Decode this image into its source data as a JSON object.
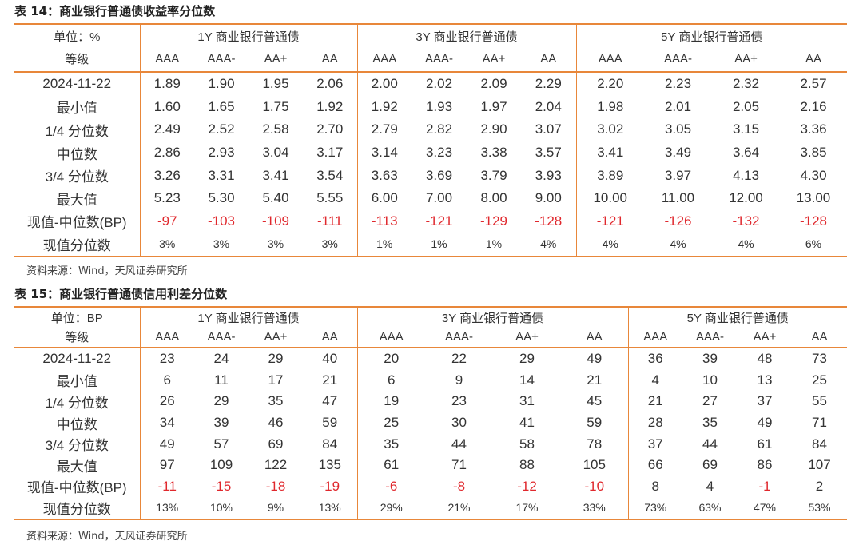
{
  "table14": {
    "title": "表 14：商业银行普通债收益率分位数",
    "unit_label": "单位：%",
    "grade_label": "等级",
    "groups": [
      "1Y 商业银行普通债",
      "3Y 商业银行普通债",
      "5Y 商业银行普通债"
    ],
    "grades": [
      "AAA",
      "AAA-",
      "AA+",
      "AA"
    ],
    "rows": [
      {
        "label": "2024-11-22",
        "values": [
          "1.89",
          "1.90",
          "1.95",
          "2.06",
          "2.00",
          "2.02",
          "2.09",
          "2.29",
          "2.20",
          "2.23",
          "2.32",
          "2.57"
        ]
      },
      {
        "label": "最小值",
        "values": [
          "1.60",
          "1.65",
          "1.75",
          "1.92",
          "1.92",
          "1.93",
          "1.97",
          "2.04",
          "1.98",
          "2.01",
          "2.05",
          "2.16"
        ]
      },
      {
        "label": "1/4 分位数",
        "values": [
          "2.49",
          "2.52",
          "2.58",
          "2.70",
          "2.79",
          "2.82",
          "2.90",
          "3.07",
          "3.02",
          "3.05",
          "3.15",
          "3.36"
        ]
      },
      {
        "label": "中位数",
        "values": [
          "2.86",
          "2.93",
          "3.04",
          "3.17",
          "3.14",
          "3.23",
          "3.38",
          "3.57",
          "3.41",
          "3.49",
          "3.64",
          "3.85"
        ]
      },
      {
        "label": "3/4 分位数",
        "values": [
          "3.26",
          "3.31",
          "3.41",
          "3.54",
          "3.63",
          "3.69",
          "3.79",
          "3.93",
          "3.89",
          "3.97",
          "4.13",
          "4.30"
        ]
      },
      {
        "label": "最大值",
        "values": [
          "5.23",
          "5.30",
          "5.40",
          "5.55",
          "6.00",
          "7.00",
          "8.00",
          "9.00",
          "10.00",
          "11.00",
          "12.00",
          "13.00"
        ]
      },
      {
        "label": "现值-中位数(BP)",
        "values": [
          "-97",
          "-103",
          "-109",
          "-111",
          "-113",
          "-121",
          "-129",
          "-128",
          "-121",
          "-126",
          "-132",
          "-128"
        ]
      },
      {
        "label": "现值分位数",
        "values": [
          "3%",
          "3%",
          "3%",
          "3%",
          "1%",
          "1%",
          "1%",
          "4%",
          "4%",
          "4%",
          "4%",
          "6%"
        ]
      }
    ],
    "source": "资料来源：Wind，天风证券研究所"
  },
  "table15": {
    "title": "表 15：商业银行普通债信用利差分位数",
    "unit_label": "单位：BP",
    "grade_label": "等级",
    "groups": [
      "1Y 商业银行普通债",
      "3Y 商业银行普通债",
      "5Y 商业银行普通债"
    ],
    "grades": [
      "AAA",
      "AAA-",
      "AA+",
      "AA"
    ],
    "rows": [
      {
        "label": "2024-11-22",
        "values": [
          "23",
          "24",
          "29",
          "40",
          "20",
          "22",
          "29",
          "49",
          "36",
          "39",
          "48",
          "73"
        ]
      },
      {
        "label": "最小值",
        "values": [
          "6",
          "11",
          "17",
          "21",
          "6",
          "9",
          "14",
          "21",
          "4",
          "10",
          "13",
          "25"
        ]
      },
      {
        "label": "1/4 分位数",
        "values": [
          "26",
          "29",
          "35",
          "47",
          "19",
          "23",
          "31",
          "45",
          "21",
          "27",
          "37",
          "55"
        ]
      },
      {
        "label": "中位数",
        "values": [
          "34",
          "39",
          "46",
          "59",
          "25",
          "30",
          "41",
          "59",
          "28",
          "35",
          "49",
          "71"
        ]
      },
      {
        "label": "3/4 分位数",
        "values": [
          "49",
          "57",
          "69",
          "84",
          "35",
          "44",
          "58",
          "78",
          "37",
          "44",
          "61",
          "84"
        ]
      },
      {
        "label": "最大值",
        "values": [
          "97",
          "109",
          "122",
          "135",
          "61",
          "71",
          "88",
          "105",
          "66",
          "69",
          "86",
          "107"
        ]
      },
      {
        "label": "现值-中位数(BP)",
        "values": [
          "-11",
          "-15",
          "-18",
          "-19",
          "-6",
          "-8",
          "-12",
          "-10",
          "8",
          "4",
          "-1",
          "2"
        ]
      },
      {
        "label": "现值分位数",
        "values": [
          "13%",
          "10%",
          "9%",
          "13%",
          "29%",
          "21%",
          "17%",
          "33%",
          "73%",
          "63%",
          "47%",
          "53%"
        ]
      }
    ],
    "source": "资料来源：Wind，天风证券研究所"
  },
  "colors": {
    "rule": "#e8873a",
    "negative": "#e0282d",
    "text": "#333333"
  }
}
